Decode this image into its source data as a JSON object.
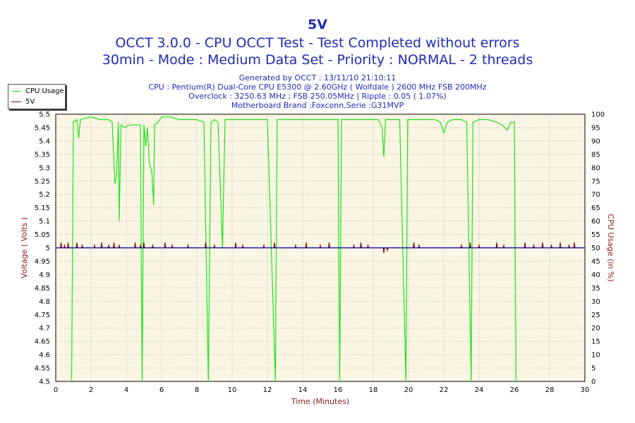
{
  "chart_data": {
    "type": "line",
    "title": "5V",
    "subtitle_lines": [
      "OCCT 3.0.0 - CPU OCCT Test - Test Completed without errors",
      "30min - Mode : Medium Data Set - Priority : NORMAL - 2 threads"
    ],
    "info_lines": [
      "Generated by OCCT : 13/11/10 21:10:11",
      "CPU : Pentium(R) Dual-Core CPU E5300 @ 2.60GHz ( Wolfdale ) 2600 MHz FSB 200MHz",
      "Overclock : 3250.63 MHz ; FSB 250.05MHz | Ripple : 0.05 ( 1.07%)",
      "Motherboard Brand :Foxconn,Serie :G31MVP"
    ],
    "xlabel": "Time (Minutes)",
    "ylabel_left": "Voltage ( Volts )",
    "ylabel_right": "CPU Usage (in %)",
    "xlim": [
      0,
      30
    ],
    "ylim_left": [
      4.5,
      5.5
    ],
    "ylim_right": [
      0,
      100
    ],
    "x_ticks": [
      "0",
      "2",
      "4",
      "6",
      "8",
      "10",
      "12",
      "14",
      "16",
      "18",
      "20",
      "22",
      "24",
      "26",
      "28",
      "30"
    ],
    "y_left_ticks": [
      "4.5",
      "4.55",
      "4.6",
      "4.65",
      "4.7",
      "4.75",
      "4.8",
      "4.85",
      "4.9",
      "4.95",
      "5",
      "5.05",
      "5.1",
      "5.15",
      "5.2",
      "5.25",
      "5.3",
      "5.35",
      "5.4",
      "5.45",
      "5.5"
    ],
    "y_right_ticks": [
      "0",
      "5",
      "10",
      "15",
      "20",
      "25",
      "30",
      "35",
      "40",
      "45",
      "50",
      "55",
      "60",
      "65",
      "70",
      "75",
      "80",
      "85",
      "90",
      "95",
      "100"
    ],
    "grid": true,
    "legend_position": "top-left",
    "series": [
      {
        "name": "CPU Usage",
        "axis": "right",
        "color": "#19e619",
        "points": [
          [
            0.9,
            0
          ],
          [
            1.0,
            97
          ],
          [
            1.2,
            98
          ],
          [
            1.3,
            91
          ],
          [
            1.4,
            98
          ],
          [
            2.0,
            99
          ],
          [
            2.5,
            98
          ],
          [
            3.0,
            98
          ],
          [
            3.2,
            97
          ],
          [
            3.35,
            74
          ],
          [
            3.45,
            77
          ],
          [
            3.55,
            97
          ],
          [
            3.6,
            60
          ],
          [
            3.7,
            96
          ],
          [
            3.9,
            95
          ],
          [
            4.2,
            96
          ],
          [
            4.5,
            96
          ],
          [
            4.8,
            96
          ],
          [
            4.9,
            0
          ],
          [
            5.0,
            96
          ],
          [
            5.1,
            88
          ],
          [
            5.2,
            95
          ],
          [
            5.3,
            82
          ],
          [
            5.45,
            78
          ],
          [
            5.55,
            66
          ],
          [
            5.6,
            96
          ],
          [
            5.8,
            97
          ],
          [
            6.0,
            99
          ],
          [
            6.5,
            99
          ],
          [
            7.0,
            98
          ],
          [
            7.5,
            98
          ],
          [
            8.0,
            98
          ],
          [
            8.4,
            97
          ],
          [
            8.65,
            0
          ],
          [
            8.8,
            97
          ],
          [
            9.0,
            98
          ],
          [
            9.2,
            97
          ],
          [
            9.45,
            50
          ],
          [
            9.6,
            98
          ],
          [
            10.0,
            98
          ],
          [
            10.5,
            98
          ],
          [
            11.0,
            98
          ],
          [
            11.5,
            98
          ],
          [
            12.0,
            98
          ],
          [
            12.45,
            0
          ],
          [
            12.55,
            98
          ],
          [
            13.0,
            98
          ],
          [
            13.5,
            98
          ],
          [
            14.0,
            98
          ],
          [
            14.5,
            98
          ],
          [
            15.0,
            98
          ],
          [
            15.5,
            98
          ],
          [
            16.0,
            98
          ],
          [
            16.1,
            0
          ],
          [
            16.2,
            98
          ],
          [
            16.5,
            98
          ],
          [
            17.0,
            98
          ],
          [
            17.5,
            98
          ],
          [
            18.0,
            98
          ],
          [
            18.3,
            98
          ],
          [
            18.5,
            95
          ],
          [
            18.6,
            84
          ],
          [
            18.7,
            98
          ],
          [
            19.0,
            98
          ],
          [
            19.5,
            98
          ],
          [
            19.85,
            0
          ],
          [
            19.95,
            98
          ],
          [
            20.5,
            98
          ],
          [
            21.0,
            98
          ],
          [
            21.5,
            98
          ],
          [
            21.8,
            97
          ],
          [
            22.0,
            93
          ],
          [
            22.2,
            97
          ],
          [
            22.5,
            98
          ],
          [
            23.0,
            98
          ],
          [
            23.3,
            97
          ],
          [
            23.55,
            0
          ],
          [
            23.65,
            97
          ],
          [
            24.0,
            98
          ],
          [
            24.5,
            98
          ],
          [
            25.0,
            97
          ],
          [
            25.3,
            96
          ],
          [
            25.6,
            94
          ],
          [
            25.8,
            97
          ],
          [
            26.0,
            97
          ],
          [
            26.1,
            0
          ]
        ]
      },
      {
        "name": "5V",
        "axis": "left",
        "color": "#1a1aa6",
        "spike_color": "#7a1010",
        "baseline": 5.0,
        "spikes": [
          [
            0.3,
            5.02
          ],
          [
            0.5,
            5.01
          ],
          [
            0.7,
            5.02
          ],
          [
            1.2,
            5.02
          ],
          [
            1.5,
            5.01
          ],
          [
            2.2,
            5.01
          ],
          [
            2.6,
            5.02
          ],
          [
            3.0,
            5.01
          ],
          [
            3.3,
            5.02
          ],
          [
            3.6,
            5.01
          ],
          [
            4.5,
            5.02
          ],
          [
            4.8,
            5.01
          ],
          [
            5.0,
            5.02
          ],
          [
            5.5,
            5.01
          ],
          [
            6.2,
            5.02
          ],
          [
            6.6,
            5.01
          ],
          [
            7.5,
            5.01
          ],
          [
            8.5,
            5.02
          ],
          [
            9.0,
            5.01
          ],
          [
            10.2,
            5.02
          ],
          [
            10.6,
            5.01
          ],
          [
            11.8,
            5.01
          ],
          [
            12.4,
            5.02
          ],
          [
            13.6,
            5.01
          ],
          [
            14.2,
            5.02
          ],
          [
            15.0,
            5.01
          ],
          [
            15.5,
            5.02
          ],
          [
            16.9,
            5.01
          ],
          [
            17.3,
            5.02
          ],
          [
            17.7,
            5.01
          ],
          [
            18.6,
            4.98
          ],
          [
            18.8,
            4.99
          ],
          [
            20.3,
            5.02
          ],
          [
            20.6,
            5.01
          ],
          [
            23.0,
            5.01
          ],
          [
            23.5,
            5.02
          ],
          [
            24.0,
            5.01
          ],
          [
            25.0,
            5.02
          ],
          [
            25.4,
            5.01
          ],
          [
            26.6,
            5.02
          ],
          [
            27.1,
            5.01
          ],
          [
            27.6,
            5.02
          ],
          [
            28.1,
            5.01
          ],
          [
            28.6,
            5.02
          ],
          [
            29.1,
            5.01
          ],
          [
            29.4,
            5.02
          ]
        ]
      }
    ]
  }
}
